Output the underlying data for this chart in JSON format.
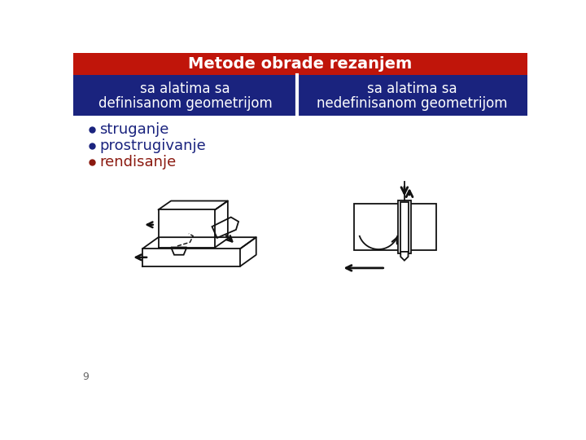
{
  "title": "Metode obrade rezanjem",
  "title_bg": "#c0150a",
  "title_fg": "#ffffff",
  "header_bg": "#1a237e",
  "header_fg": "#ffffff",
  "col1_header_line1": "sa alatima sa",
  "col1_header_line2": "definisanom geometrijom",
  "col2_header_line1": "sa alatima sa",
  "col2_header_line2": "nedefinisanom geometrijom",
  "bullet_items": [
    {
      "text": "struganje",
      "color": "#1a237e"
    },
    {
      "text": "prostrugivanje",
      "color": "#1a237e"
    },
    {
      "text": "rendisanje",
      "color": "#8b1a10"
    }
  ],
  "page_number": "9",
  "bg_color": "#ffffff",
  "title_fontsize": 14,
  "header_fontsize": 12,
  "bullet_fontsize": 13
}
